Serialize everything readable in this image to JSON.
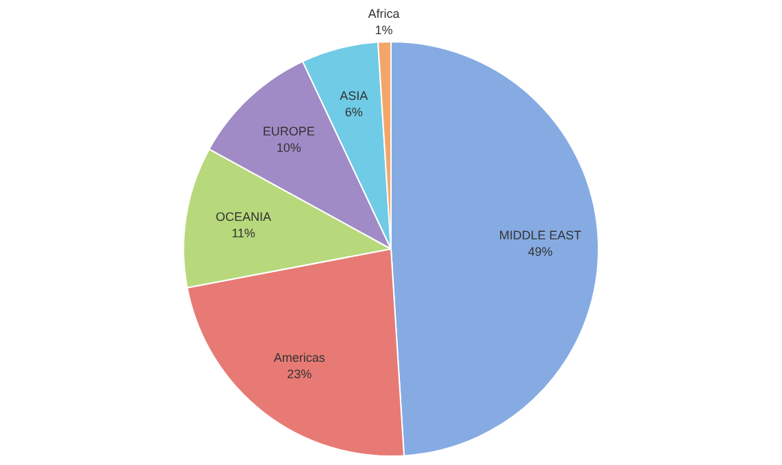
{
  "chart_data": {
    "type": "pie",
    "categories": [
      "MIDDLE EAST",
      "Americas",
      "OCEANIA",
      "EUROPE",
      "ASIA",
      "Africa"
    ],
    "values": [
      49,
      23,
      11,
      10,
      6,
      1
    ],
    "value_labels": [
      "49%",
      "23%",
      "11%",
      "10%",
      "6%",
      "1%"
    ],
    "colors": [
      "#86abe3",
      "#e77a74",
      "#b7d97c",
      "#a08bc6",
      "#6fcbe6",
      "#f3a66a"
    ],
    "legend": false
  }
}
